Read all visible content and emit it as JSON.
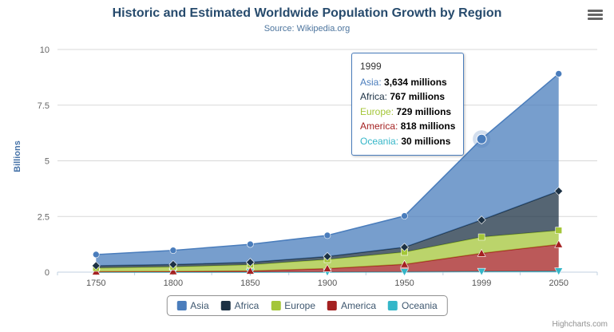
{
  "icons": {
    "context_menu": "hamburger-menu-icon"
  },
  "credits": {
    "label": "Highcharts.com"
  },
  "tooltip": {
    "header": "1999",
    "rows": [
      {
        "name": "Asia",
        "value": "3,634 millions"
      },
      {
        "name": "Africa",
        "value": "767 millions"
      },
      {
        "name": "Europe",
        "value": "729 millions"
      },
      {
        "name": "America",
        "value": "818 millions"
      },
      {
        "name": "Oceania",
        "value": "30 millions"
      }
    ]
  },
  "chart_data": {
    "type": "area",
    "stacked": true,
    "title": "Historic and Estimated Worldwide Population Growth by Region",
    "subtitle": "Source: Wikipedia.org",
    "xlabel": "",
    "ylabel": "Billions",
    "ylim": [
      0,
      10
    ],
    "yticks": [
      0,
      2.5,
      5,
      7.5,
      10
    ],
    "values_unit": "millions",
    "axis_unit": "billions",
    "grid": true,
    "legend_position": "bottom",
    "categories": [
      "1750",
      "1800",
      "1850",
      "1900",
      "1950",
      "1999",
      "2050"
    ],
    "series": [
      {
        "name": "Asia",
        "color": "#4A7DBC",
        "marker": "circle",
        "values": [
          502,
          635,
          809,
          947,
          1402,
          3634,
          5268
        ]
      },
      {
        "name": "Africa",
        "color": "#1C3144",
        "marker": "diamond",
        "values": [
          106,
          107,
          111,
          133,
          221,
          767,
          1766
        ]
      },
      {
        "name": "Europe",
        "color": "#A4C639",
        "marker": "square",
        "values": [
          163,
          203,
          276,
          408,
          547,
          729,
          628
        ]
      },
      {
        "name": "America",
        "color": "#A42121",
        "marker": "triangle",
        "values": [
          18,
          31,
          54,
          156,
          339,
          818,
          1201
        ]
      },
      {
        "name": "Oceania",
        "color": "#35B6C8",
        "marker": "triangle-down",
        "values": [
          2,
          2,
          2,
          6,
          13,
          30,
          46
        ]
      }
    ],
    "hover": {
      "series": "Asia",
      "category": "1999"
    }
  }
}
